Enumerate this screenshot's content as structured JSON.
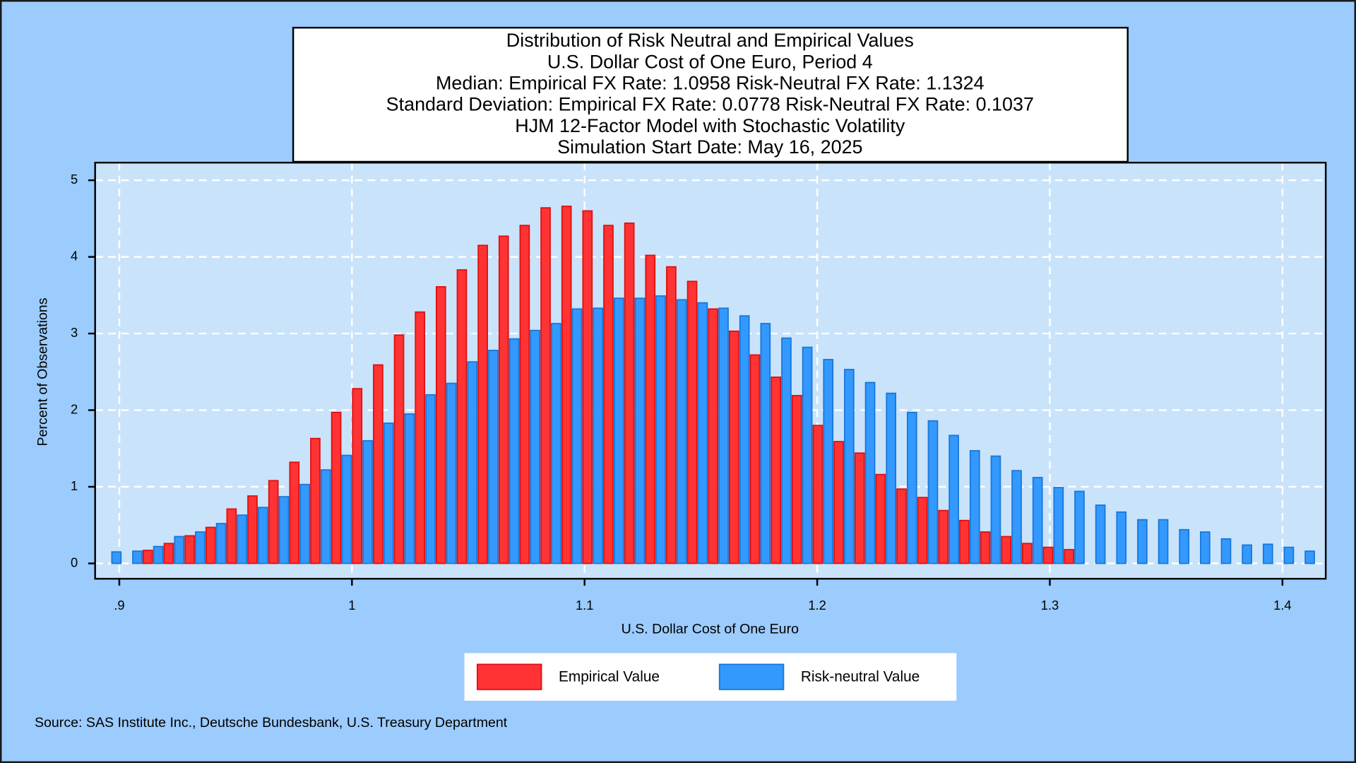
{
  "chart_data": {
    "type": "histogram",
    "title": "Distribution of Risk Neutral and Empirical Values",
    "subtitle": [
      "U.S. Dollar Cost of One Euro, Period 4",
      "Median: Empirical FX Rate:  1.0958   Risk-Neutral FX Rate:  1.1324",
      "Standard Deviation: Empirical FX Rate:  0.0778   Risk-Neutral FX Rate:  0.1037",
      "HJM 12-Factor Model with Stochastic Volatility",
      "Simulation Start Date: May 16, 2025"
    ],
    "x_label": "U.S. Dollar Cost of One Euro",
    "y_label": "Percent of Observations",
    "source": "Source: SAS Institute Inc., Deutsche Bundesbank, U.S. Treasury Department",
    "bins": [
      0.892,
      0.901,
      0.91,
      0.919,
      0.928,
      0.937,
      0.946,
      0.955,
      0.964,
      0.973,
      0.982,
      0.991,
      1.0,
      1.009,
      1.018,
      1.027,
      1.036,
      1.045,
      1.054,
      1.063,
      1.072,
      1.081,
      1.09,
      1.099,
      1.108,
      1.117,
      1.126,
      1.135,
      1.144,
      1.153,
      1.162,
      1.171,
      1.18,
      1.189,
      1.198,
      1.207,
      1.216,
      1.225,
      1.234,
      1.243,
      1.252,
      1.261,
      1.27,
      1.279,
      1.288,
      1.297,
      1.306,
      1.315,
      1.324,
      1.333,
      1.342,
      1.351,
      1.36,
      1.369,
      1.378,
      1.387,
      1.396,
      1.405,
      1.414
    ],
    "series": [
      {
        "name": "Empirical Value",
        "color": "#ff3333",
        "stroke": "#e01010",
        "values": [
          null,
          null,
          0.17,
          0.26,
          0.36,
          0.47,
          0.71,
          0.88,
          1.08,
          1.32,
          1.63,
          1.97,
          2.28,
          2.59,
          2.98,
          3.28,
          3.61,
          3.83,
          4.15,
          4.27,
          4.41,
          4.64,
          4.66,
          4.6,
          4.41,
          4.44,
          4.02,
          3.87,
          3.68,
          3.32,
          3.03,
          2.72,
          2.43,
          2.19,
          1.8,
          1.59,
          1.44,
          1.16,
          0.97,
          0.86,
          0.69,
          0.56,
          0.41,
          0.35,
          0.26,
          0.21,
          0.18,
          null,
          null,
          null,
          null,
          null,
          null,
          null,
          null,
          null,
          null,
          null
        ]
      },
      {
        "name": "Risk-neutral Value",
        "color": "#3399ff",
        "stroke": "#1a78d8",
        "values": [
          0.15,
          0.16,
          0.22,
          0.35,
          0.41,
          0.52,
          0.63,
          0.73,
          0.87,
          1.03,
          1.22,
          1.41,
          1.6,
          1.83,
          1.95,
          2.2,
          2.35,
          2.63,
          2.78,
          2.93,
          3.04,
          3.13,
          3.32,
          3.33,
          3.46,
          3.46,
          3.49,
          3.44,
          3.4,
          3.33,
          3.23,
          3.13,
          2.94,
          2.82,
          2.66,
          2.53,
          2.36,
          2.22,
          1.97,
          1.86,
          1.67,
          1.47,
          1.4,
          1.21,
          1.12,
          0.99,
          0.94,
          0.76,
          0.67,
          0.57,
          0.57,
          0.44,
          0.41,
          0.32,
          0.24,
          0.25,
          0.21,
          0.16
        ]
      }
    ],
    "xlim": [
      0.8896,
      1.4186
    ],
    "xticks": [
      {
        "value": 0.9,
        "label": ".9"
      },
      1,
      1.1,
      1.2,
      1.3,
      1.4
    ],
    "ylim": [
      -0.2,
      5.23
    ],
    "yticks": [
      0,
      1,
      2,
      3,
      4,
      5
    ],
    "grid": true,
    "legend": "bottom"
  }
}
